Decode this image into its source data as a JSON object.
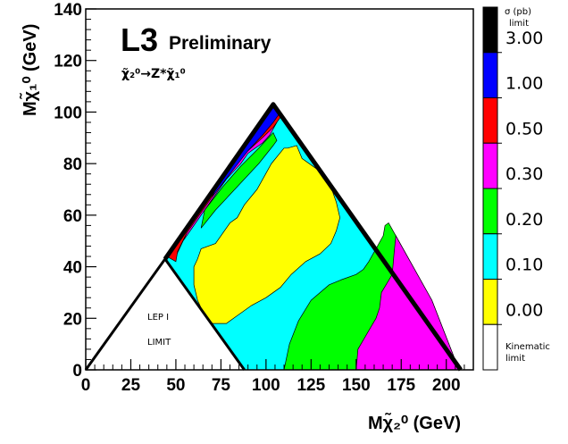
{
  "chart_data": {
    "type": "heatmap",
    "experiment_label": "L3",
    "status_label": "Preliminary",
    "process_label": "χ̃₂⁰→Z*χ̃₁⁰",
    "xlabel": "Mχ̃₂⁰ (GeV)",
    "ylabel": "Mχ̃₁⁰ (GeV)",
    "xlim": [
      0,
      215
    ],
    "ylim": [
      0,
      140
    ],
    "x_ticks": [
      0,
      25,
      50,
      75,
      100,
      125,
      150,
      175,
      200
    ],
    "y_ticks": [
      0,
      20,
      40,
      60,
      80,
      100,
      120,
      140
    ],
    "colorbar": {
      "title": "σ (pb)",
      "subtitle": "limit",
      "levels": [
        "3.00",
        "1.00",
        "0.50",
        "0.30",
        "0.20",
        "0.10",
        "0.00"
      ],
      "bottom_label_line1": "Kinematic",
      "bottom_label_line2": "limit",
      "colors": [
        "#000000",
        "#0000ff",
        "#ff0000",
        "#ff00ff",
        "#00ff00",
        "#00ffff",
        "#ffff00",
        "#ffffff"
      ]
    },
    "annotations": {
      "excluded_region_line1": "LEP I",
      "excluded_region_line2": "LIMIT"
    },
    "regions": [
      {
        "name": "0.10–0.20",
        "color": "#00ffff",
        "polygon": [
          [
            44,
            43
          ],
          [
            104,
            103
          ],
          [
            207,
            0
          ],
          [
            88,
            0
          ]
        ]
      },
      {
        "name": "0.20–0.30",
        "color": "#00ff00",
        "polygon": [
          [
            110,
            0
          ],
          [
            113,
            10
          ],
          [
            118,
            19
          ],
          [
            125,
            27
          ],
          [
            135,
            33
          ],
          [
            142,
            35
          ],
          [
            150,
            37
          ],
          [
            154,
            39
          ],
          [
            157,
            42
          ],
          [
            161,
            47
          ],
          [
            165,
            52
          ],
          [
            166,
            56
          ],
          [
            168,
            57
          ],
          [
            172,
            52
          ],
          [
            192,
            27
          ],
          [
            207,
            0
          ]
        ]
      },
      {
        "name": "0.30–0.50",
        "color": "#ff00ff",
        "polygon": [
          [
            150,
            0
          ],
          [
            151,
            8
          ],
          [
            156,
            14
          ],
          [
            161,
            20
          ],
          [
            163,
            24
          ],
          [
            164,
            30
          ],
          [
            170,
            37
          ],
          [
            171,
            45
          ],
          [
            172,
            52
          ],
          [
            192,
            27
          ],
          [
            207,
            0
          ]
        ]
      },
      {
        "name": "0.00–0.10",
        "color": "#ffff00",
        "polygon": [
          [
            60,
            40
          ],
          [
            62,
            43
          ],
          [
            64,
            47
          ],
          [
            72,
            49
          ],
          [
            80,
            57
          ],
          [
            84,
            59
          ],
          [
            88,
            64
          ],
          [
            95,
            70
          ],
          [
            103,
            80
          ],
          [
            110,
            86
          ],
          [
            112,
            86
          ],
          [
            117,
            87
          ],
          [
            120,
            82
          ],
          [
            130,
            77
          ],
          [
            136,
            71
          ],
          [
            139,
            65
          ],
          [
            140,
            62
          ],
          [
            141,
            59
          ],
          [
            139,
            54
          ],
          [
            136,
            49
          ],
          [
            130,
            45
          ],
          [
            122,
            42
          ],
          [
            114,
            37
          ],
          [
            108,
            32
          ],
          [
            100,
            28
          ],
          [
            92,
            25
          ],
          [
            84,
            21
          ],
          [
            78,
            18
          ],
          [
            70,
            18
          ],
          [
            66,
            21
          ],
          [
            62,
            27
          ],
          [
            60,
            33
          ]
        ]
      },
      {
        "name": "edge-magenta",
        "color": "#ff00ff",
        "polygon": [
          [
            50,
            44
          ],
          [
            54,
            50
          ],
          [
            58,
            54
          ],
          [
            62,
            58
          ],
          [
            66,
            62
          ],
          [
            70,
            66
          ],
          [
            74,
            70
          ],
          [
            78,
            74
          ],
          [
            82,
            77
          ],
          [
            86,
            80
          ],
          [
            90,
            84
          ],
          [
            94,
            86
          ],
          [
            98,
            88
          ],
          [
            102,
            91
          ],
          [
            106,
            96
          ],
          [
            103,
            101
          ],
          [
            96,
            94
          ],
          [
            88,
            86
          ],
          [
            78,
            76
          ],
          [
            68,
            66
          ],
          [
            58,
            56
          ]
        ]
      },
      {
        "name": "edge-red",
        "color": "#ff0000",
        "polygon": [
          [
            45,
            44
          ],
          [
            50,
            42
          ],
          [
            51,
            46
          ],
          [
            56,
            53
          ],
          [
            62,
            59
          ],
          [
            70,
            67
          ],
          [
            80,
            77
          ],
          [
            90,
            85
          ],
          [
            98,
            90
          ],
          [
            104,
            94
          ],
          [
            108,
            98
          ],
          [
            104,
            102
          ],
          [
            95,
            93
          ],
          [
            80,
            78
          ],
          [
            65,
            63
          ],
          [
            52,
            51
          ]
        ]
      },
      {
        "name": "edge-blue",
        "color": "#0000ff",
        "polygon": [
          [
            70,
            67
          ],
          [
            80,
            76
          ],
          [
            90,
            85
          ],
          [
            98,
            91
          ],
          [
            104,
            96
          ],
          [
            107,
            99
          ],
          [
            104,
            103
          ],
          [
            96,
            95
          ],
          [
            85,
            84
          ],
          [
            74,
            73
          ]
        ]
      },
      {
        "name": "edge-green-left",
        "color": "#00ff00",
        "polygon": [
          [
            64,
            55
          ],
          [
            72,
            62
          ],
          [
            80,
            68
          ],
          [
            88,
            74
          ],
          [
            96,
            80
          ],
          [
            104,
            87
          ],
          [
            106,
            89
          ],
          [
            104,
            92
          ],
          [
            96,
            86
          ],
          [
            86,
            79
          ],
          [
            76,
            71
          ],
          [
            66,
            62
          ]
        ]
      }
    ]
  }
}
